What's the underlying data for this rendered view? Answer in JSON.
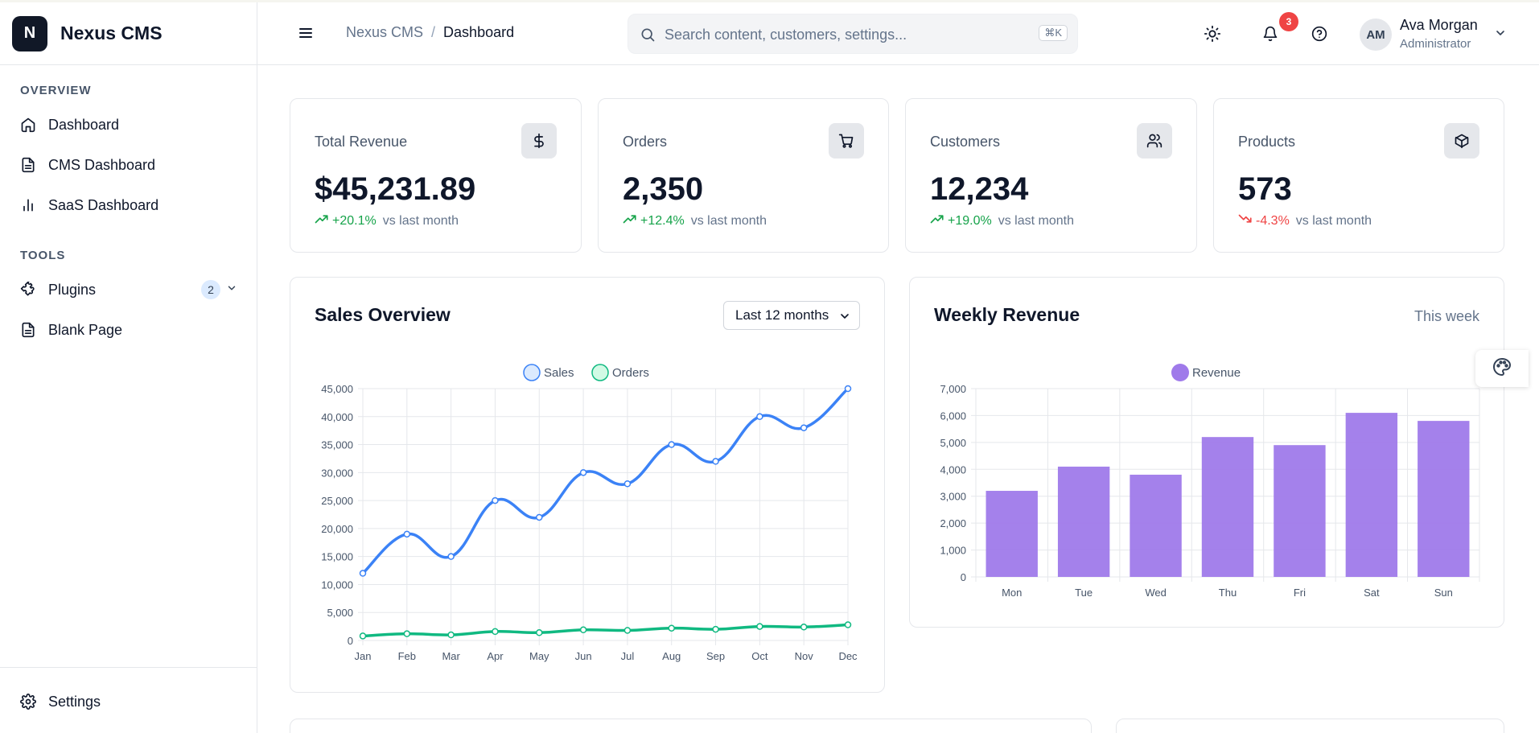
{
  "app": {
    "logo_letter": "N",
    "name": "Nexus CMS"
  },
  "sidebar": {
    "sections": [
      {
        "label": "OVERVIEW",
        "items": [
          {
            "label": "Dashboard",
            "icon": "home-icon"
          },
          {
            "label": "CMS Dashboard",
            "icon": "file-icon"
          },
          {
            "label": "SaaS Dashboard",
            "icon": "bar-chart-icon"
          }
        ]
      },
      {
        "label": "TOOLS",
        "items": [
          {
            "label": "Plugins",
            "icon": "puzzle-icon",
            "badge": "2"
          },
          {
            "label": "Blank Page",
            "icon": "file-icon"
          }
        ]
      }
    ],
    "footer": {
      "label": "Settings",
      "icon": "gear-icon"
    }
  },
  "header": {
    "breadcrumb": {
      "root": "Nexus CMS",
      "separator": "/",
      "current": "Dashboard"
    },
    "search": {
      "placeholder": "Search content, customers, settings...",
      "shortcut": "⌘K"
    },
    "notifications_count": "3",
    "user": {
      "initials": "AM",
      "name": "Ava Morgan",
      "role": "Administrator"
    }
  },
  "stats": [
    {
      "title": "Total Revenue",
      "value": "$45,231.89",
      "change": "+20.1%",
      "direction": "up",
      "suffix": "vs last month",
      "icon": "dollar-icon"
    },
    {
      "title": "Orders",
      "value": "2,350",
      "change": "+12.4%",
      "direction": "up",
      "suffix": "vs last month",
      "icon": "cart-icon"
    },
    {
      "title": "Customers",
      "value": "12,234",
      "change": "+19.0%",
      "direction": "up",
      "suffix": "vs last month",
      "icon": "users-icon"
    },
    {
      "title": "Products",
      "value": "573",
      "change": "-4.3%",
      "direction": "down",
      "suffix": "vs last month",
      "icon": "box-icon"
    }
  ],
  "sales_overview": {
    "title": "Sales Overview",
    "period": "Last 12 months"
  },
  "weekly_revenue": {
    "title": "Weekly Revenue",
    "period": "This week"
  },
  "colors": {
    "sales": "#3b82f6",
    "orders": "#10b981",
    "revenue": "#9f7aea",
    "up": "#16a34a",
    "down": "#ef4444"
  },
  "chart_data": [
    {
      "type": "line",
      "categories": [
        "Jan",
        "Feb",
        "Mar",
        "Apr",
        "May",
        "Jun",
        "Jul",
        "Aug",
        "Sep",
        "Oct",
        "Nov",
        "Dec"
      ],
      "series": [
        {
          "name": "Sales",
          "values": [
            12000,
            19000,
            15000,
            25000,
            22000,
            30000,
            28000,
            35000,
            32000,
            40000,
            38000,
            45000
          ]
        },
        {
          "name": "Orders",
          "values": [
            800,
            1200,
            1000,
            1600,
            1400,
            1900,
            1800,
            2200,
            2000,
            2500,
            2400,
            2800
          ]
        }
      ],
      "ylim": [
        0,
        45000
      ],
      "yticks": [
        0,
        5000,
        10000,
        15000,
        20000,
        25000,
        30000,
        35000,
        40000,
        45000
      ],
      "ytick_labels": [
        "0",
        "5,000",
        "10,000",
        "15,000",
        "20,000",
        "25,000",
        "30,000",
        "35,000",
        "40,000",
        "45,000"
      ],
      "legend": "top-center",
      "grid": true
    },
    {
      "type": "bar",
      "categories": [
        "Mon",
        "Tue",
        "Wed",
        "Thu",
        "Fri",
        "Sat",
        "Sun"
      ],
      "series": [
        {
          "name": "Revenue",
          "values": [
            3200,
            4100,
            3800,
            5200,
            4900,
            6100,
            5800
          ]
        }
      ],
      "ylim": [
        0,
        7000
      ],
      "yticks": [
        0,
        1000,
        2000,
        3000,
        4000,
        5000,
        6000,
        7000
      ],
      "ytick_labels": [
        "0",
        "1,000",
        "2,000",
        "3,000",
        "4,000",
        "5,000",
        "6,000",
        "7,000"
      ],
      "legend": "top-center",
      "grid": true
    }
  ]
}
